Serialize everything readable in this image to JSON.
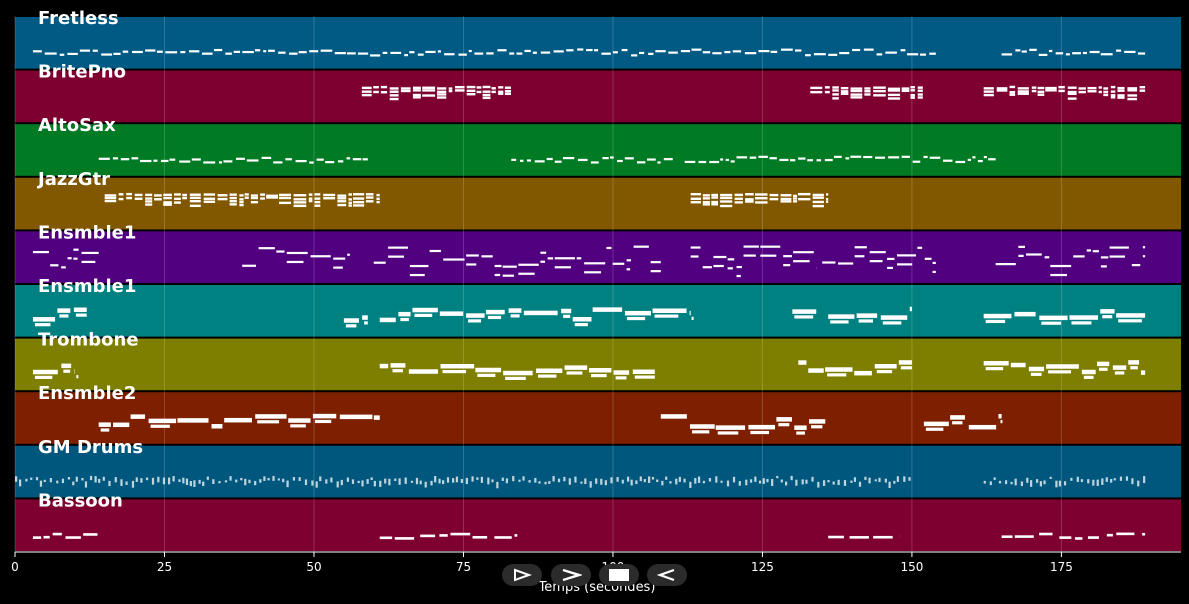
{
  "accent_colors": {
    "background": "#000000",
    "note": "#ffffff",
    "grid": "#ffffff",
    "control_button": "#2b2b2b"
  },
  "tracks": [
    {
      "name": "Fretless",
      "color": "#005a83",
      "note_style": "dashed"
    },
    {
      "name": "BritePno",
      "color": "#7e0030",
      "note_style": "chords"
    },
    {
      "name": "AltoSax",
      "color": "#007b23",
      "note_style": "dashed"
    },
    {
      "name": "JazzGtr",
      "color": "#815800",
      "note_style": "chords"
    },
    {
      "name": "Ensmble1",
      "color": "#510080",
      "note_style": "lines"
    },
    {
      "name": "Ensmble1",
      "color": "#008181",
      "note_style": "blocks"
    },
    {
      "name": "Trombone",
      "color": "#7e7e00",
      "note_style": "blocks"
    },
    {
      "name": "Ensmble2",
      "color": "#7e2000",
      "note_style": "blocks"
    },
    {
      "name": "GM Drums",
      "color": "#00577e",
      "note_style": "drums"
    },
    {
      "name": "Bassoon",
      "color": "#7e0030",
      "note_style": "bass"
    }
  ],
  "chart_data": {
    "type": "piano-roll",
    "xlabel": "Temps (secondes)",
    "xlim": [
      0,
      195
    ],
    "xticks": [
      0,
      25,
      50,
      75,
      100,
      125,
      150,
      175
    ],
    "grid": true,
    "tracks": [
      {
        "name": "Fretless",
        "segments": [
          [
            3,
            154
          ],
          [
            165,
            189
          ]
        ]
      },
      {
        "name": "BritePno",
        "segments": [
          [
            58,
            83
          ],
          [
            133,
            152
          ],
          [
            162,
            189
          ]
        ]
      },
      {
        "name": "AltoSax",
        "segments": [
          [
            14,
            59
          ],
          [
            83,
            110
          ],
          [
            112,
            164
          ]
        ]
      },
      {
        "name": "JazzGtr",
        "segments": [
          [
            15,
            61
          ],
          [
            113,
            136
          ]
        ]
      },
      {
        "name": "Ensmble1",
        "segments": [
          [
            3,
            14
          ],
          [
            38,
            56
          ],
          [
            60,
            108
          ],
          [
            113,
            134
          ],
          [
            135,
            154
          ],
          [
            164,
            189
          ]
        ]
      },
      {
        "name": "Ensmble1",
        "segments": [
          [
            3,
            12
          ],
          [
            55,
            59
          ],
          [
            61,
            113
          ],
          [
            130,
            134
          ],
          [
            136,
            150
          ],
          [
            162,
            189
          ]
        ]
      },
      {
        "name": "Trombone",
        "segments": [
          [
            3,
            10
          ],
          [
            61,
            107
          ],
          [
            131,
            150
          ],
          [
            162,
            189
          ]
        ]
      },
      {
        "name": "Ensmble2",
        "segments": [
          [
            14,
            61
          ],
          [
            108,
            136
          ],
          [
            152,
            165
          ]
        ]
      },
      {
        "name": "GM Drums",
        "segments": [
          [
            0,
            60
          ],
          [
            60,
            150
          ],
          [
            162,
            189
          ]
        ]
      },
      {
        "name": "Bassoon",
        "segments": [
          [
            3,
            14
          ],
          [
            61,
            84
          ],
          [
            136,
            148
          ],
          [
            165,
            189
          ]
        ]
      }
    ]
  },
  "controls": {
    "play_icon": "play-outline-icon",
    "forward_icon": "fast-forward-icon",
    "stop_icon": "stop-square-icon",
    "back_icon": "back-outline-icon"
  }
}
